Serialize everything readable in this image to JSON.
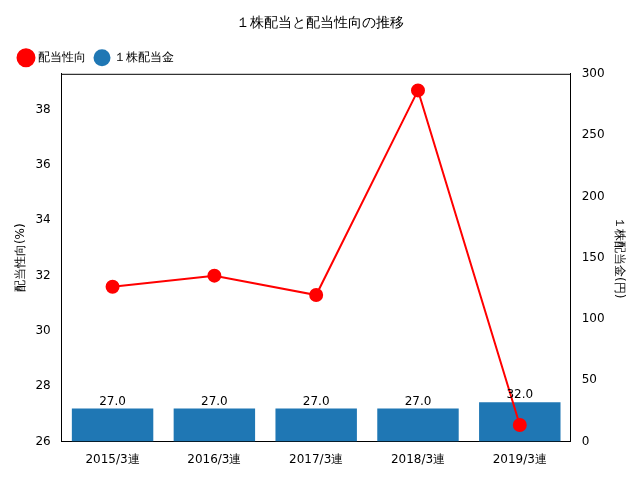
{
  "chart_data": {
    "type": "bar",
    "title": "１株配当と配当性向の推移",
    "categories": [
      "2015/3連",
      "2016/3連",
      "2017/3連",
      "2018/3連",
      "2019/3連"
    ],
    "ylabel": "配当性向(%)",
    "y2label": "１株配当金(円)",
    "ylim": [
      26,
      39.3
    ],
    "yticks": [
      26,
      28,
      30,
      32,
      34,
      36,
      38
    ],
    "y2lim": [
      0,
      300
    ],
    "y2ticks": [
      0,
      50,
      100,
      150,
      200,
      250,
      300
    ],
    "grid": false,
    "legend": "upper left",
    "data_labels": true,
    "series": [
      {
        "name": "配当性向",
        "type": "line",
        "color": "#ff0000",
        "marker": "circle",
        "line_style": "solid",
        "axis": "y",
        "values": [
          31.6,
          32.0,
          31.3,
          38.7,
          26.6
        ]
      },
      {
        "name": "１株配当金",
        "type": "bar",
        "color": "#1f77b4",
        "axis": "y2",
        "values": [
          27,
          27,
          27,
          27,
          32
        ],
        "value_labels": [
          "27.0",
          "27.0",
          "27.0",
          "27.0",
          "32.0"
        ]
      }
    ]
  }
}
